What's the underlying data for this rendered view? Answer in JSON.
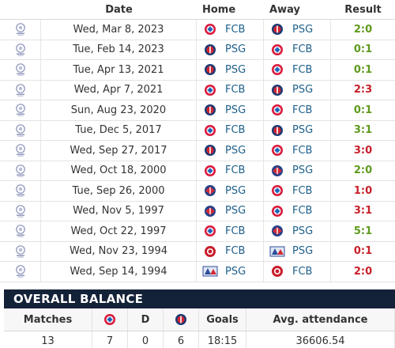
{
  "table": {
    "headers": {
      "date": "Date",
      "home": "Home",
      "away": "Away",
      "result": "Result"
    },
    "rows": [
      {
        "date": "Wed, Mar 8, 2023",
        "home": "FCB",
        "home_logo": "bayern-logo-icon",
        "away": "PSG",
        "away_logo": "psg-logo-icon",
        "result": "2:0",
        "result_type": "win"
      },
      {
        "date": "Tue, Feb 14, 2023",
        "home": "PSG",
        "home_logo": "psg-logo-icon",
        "away": "FCB",
        "away_logo": "bayern-logo-icon",
        "result": "0:1",
        "result_type": "win"
      },
      {
        "date": "Tue, Apr 13, 2021",
        "home": "PSG",
        "home_logo": "psg-logo-icon",
        "away": "FCB",
        "away_logo": "bayern-logo-icon",
        "result": "0:1",
        "result_type": "win"
      },
      {
        "date": "Wed, Apr 7, 2021",
        "home": "FCB",
        "home_logo": "bayern-logo-icon",
        "away": "PSG",
        "away_logo": "psg-logo-icon",
        "result": "2:3",
        "result_type": "loss"
      },
      {
        "date": "Sun, Aug 23, 2020",
        "home": "PSG",
        "home_logo": "psg-logo-icon",
        "away": "FCB",
        "away_logo": "bayern-logo-icon",
        "result": "0:1",
        "result_type": "win"
      },
      {
        "date": "Tue, Dec 5, 2017",
        "home": "FCB",
        "home_logo": "bayern-logo-icon",
        "away": "PSG",
        "away_logo": "psg-logo-icon",
        "result": "3:1",
        "result_type": "win"
      },
      {
        "date": "Wed, Sep 27, 2017",
        "home": "PSG",
        "home_logo": "psg-logo-icon",
        "away": "FCB",
        "away_logo": "bayern-logo-icon",
        "result": "3:0",
        "result_type": "loss"
      },
      {
        "date": "Wed, Oct 18, 2000",
        "home": "FCB",
        "home_logo": "bayern-logo-icon",
        "away": "PSG",
        "away_logo": "psg-old-logo-icon",
        "result": "2:0",
        "result_type": "win"
      },
      {
        "date": "Tue, Sep 26, 2000",
        "home": "PSG",
        "home_logo": "psg-old-logo-icon",
        "away": "FCB",
        "away_logo": "bayern-logo-icon",
        "result": "1:0",
        "result_type": "loss"
      },
      {
        "date": "Wed, Nov 5, 1997",
        "home": "PSG",
        "home_logo": "psg-old-logo-icon",
        "away": "FCB",
        "away_logo": "bayern-logo-icon",
        "result": "3:1",
        "result_type": "loss"
      },
      {
        "date": "Wed, Oct 22, 1997",
        "home": "FCB",
        "home_logo": "bayern-logo-icon",
        "away": "PSG",
        "away_logo": "psg-old-logo-icon",
        "result": "5:1",
        "result_type": "win"
      },
      {
        "date": "Wed, Nov 23, 1994",
        "home": "FCB",
        "home_logo": "bayern-red-logo-icon",
        "away": "PSG",
        "away_logo": "psg-retro-logo-icon",
        "result": "0:1",
        "result_type": "loss"
      },
      {
        "date": "Wed, Sep 14, 1994",
        "home": "PSG",
        "home_logo": "psg-retro-logo-icon",
        "away": "FCB",
        "away_logo": "bayern-red-logo-icon",
        "result": "2:0",
        "result_type": "loss"
      }
    ]
  },
  "balance": {
    "title": "OVERALL BALANCE",
    "headers": {
      "matches": "Matches",
      "draws": "D",
      "goals": "Goals",
      "attendance": "Avg. attendance"
    },
    "values": {
      "matches": "13",
      "fcb_wins": "7",
      "draws": "0",
      "psg_wins": "6",
      "goals": "18:15",
      "attendance": "36606.54"
    }
  },
  "colors": {
    "win": "#5f9a1e",
    "loss": "#c8202a",
    "team_link": "#1d5f8a",
    "banner": "#142238"
  }
}
